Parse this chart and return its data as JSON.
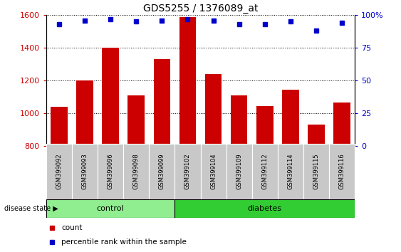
{
  "title": "GDS5255 / 1376089_at",
  "samples": [
    "GSM399092",
    "GSM399093",
    "GSM399096",
    "GSM399098",
    "GSM399099",
    "GSM399102",
    "GSM399104",
    "GSM399109",
    "GSM399112",
    "GSM399114",
    "GSM399115",
    "GSM399116"
  ],
  "counts": [
    1040,
    1200,
    1400,
    1110,
    1330,
    1590,
    1240,
    1110,
    1045,
    1145,
    930,
    1065
  ],
  "percentiles": [
    93,
    96,
    97,
    95,
    96,
    97,
    96,
    93,
    93,
    95,
    88,
    94
  ],
  "ylim_left": [
    800,
    1600
  ],
  "ylim_right": [
    0,
    100
  ],
  "yticks_left": [
    800,
    1000,
    1200,
    1400,
    1600
  ],
  "yticks_right": [
    0,
    25,
    50,
    75,
    100
  ],
  "bar_color": "#CC0000",
  "dot_color": "#0000CC",
  "n_control": 5,
  "n_diabetes": 7,
  "control_color": "#90EE90",
  "diabetes_color": "#32CD32",
  "bg_color": "#C8C8C8",
  "legend_count_label": "count",
  "legend_percentile_label": "percentile rank within the sample",
  "disease_state_label": "disease state",
  "control_label": "control",
  "diabetes_label": "diabetes"
}
